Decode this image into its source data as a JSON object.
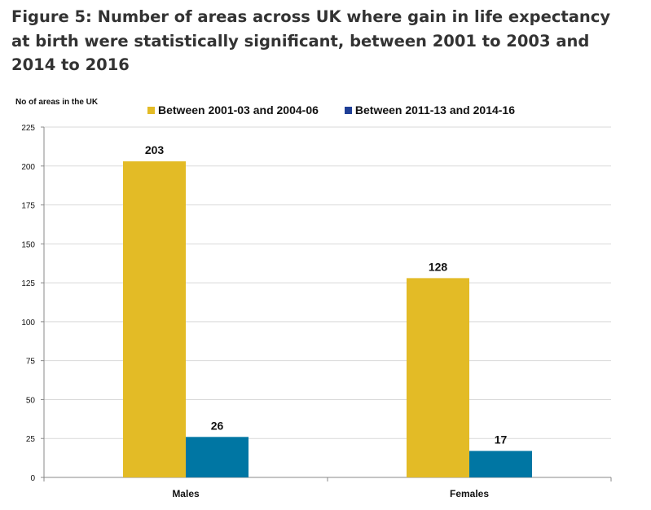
{
  "title": "Figure 5: Number of areas across UK where gain in life expectancy at birth were statistically significant, between 2001 to 2003 and 2014 to 2016",
  "colors": {
    "series1": "#e3bb26",
    "series2": "#0076a3",
    "legend_series2": "#1f3f96"
  },
  "chart_data": {
    "type": "bar",
    "ylabel": "No of areas in the UK",
    "xlabel": "",
    "ylim": [
      0,
      225
    ],
    "yticks": [
      0,
      25,
      50,
      75,
      100,
      125,
      150,
      175,
      200,
      225
    ],
    "categories": [
      "Males",
      "Females"
    ],
    "series": [
      {
        "name": "Between 2001-03 and 2004-06",
        "values": [
          203,
          128
        ]
      },
      {
        "name": "Between 2011-13 and 2014-16",
        "values": [
          26,
          17
        ]
      }
    ],
    "grid": true,
    "legend_position": "top"
  }
}
